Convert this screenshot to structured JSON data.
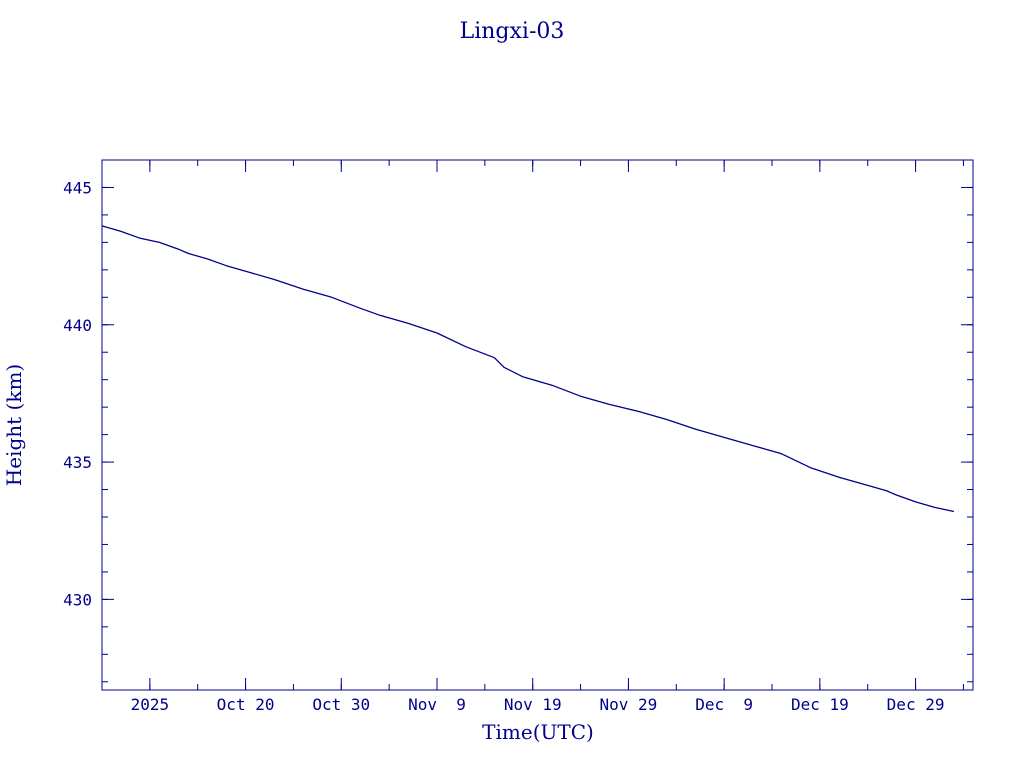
{
  "chart_data": {
    "type": "line",
    "title": "Lingxi-03",
    "xlabel": "Time(UTC)",
    "ylabel": "Height (km)",
    "colors": {
      "line": "#00008b",
      "axes": "#00008b",
      "text": "#00008b",
      "background": "#ffffff"
    },
    "grid": false,
    "legend": "none",
    "xlim": [
      "2025-10-05",
      "2026-01-04"
    ],
    "ylim": [
      426.7,
      446.0
    ],
    "x_ticks": [
      {
        "date": "2025-10-10",
        "label": "2025"
      },
      {
        "date": "2025-10-20",
        "label": "Oct 20"
      },
      {
        "date": "2025-10-30",
        "label": "Oct 30"
      },
      {
        "date": "2025-11-09",
        "label": "Nov  9"
      },
      {
        "date": "2025-11-19",
        "label": "Nov 19"
      },
      {
        "date": "2025-11-29",
        "label": "Nov 29"
      },
      {
        "date": "2025-12-09",
        "label": "Dec  9"
      },
      {
        "date": "2025-12-19",
        "label": "Dec 19"
      },
      {
        "date": "2025-12-29",
        "label": "Dec 29"
      }
    ],
    "x_minor_tick_days": 5,
    "y_ticks": [
      430,
      435,
      440,
      445
    ],
    "y_minor_tick_step": 1,
    "series": [
      {
        "points": [
          {
            "x": "2025-10-05",
            "y": 443.6
          },
          {
            "x": "2025-10-07",
            "y": 443.4
          },
          {
            "x": "2025-10-09",
            "y": 443.15
          },
          {
            "x": "2025-10-11",
            "y": 443.0
          },
          {
            "x": "2025-10-13",
            "y": 442.75
          },
          {
            "x": "2025-10-14",
            "y": 442.6
          },
          {
            "x": "2025-10-16",
            "y": 442.4
          },
          {
            "x": "2025-10-18",
            "y": 442.15
          },
          {
            "x": "2025-10-20",
            "y": 441.95
          },
          {
            "x": "2025-10-23",
            "y": 441.65
          },
          {
            "x": "2025-10-26",
            "y": 441.3
          },
          {
            "x": "2025-10-29",
            "y": 441.0
          },
          {
            "x": "2025-11-01",
            "y": 440.6
          },
          {
            "x": "2025-11-03",
            "y": 440.35
          },
          {
            "x": "2025-11-06",
            "y": 440.05
          },
          {
            "x": "2025-11-09",
            "y": 439.7
          },
          {
            "x": "2025-11-12",
            "y": 439.2
          },
          {
            "x": "2025-11-15",
            "y": 438.8
          },
          {
            "x": "2025-11-16",
            "y": 438.45
          },
          {
            "x": "2025-11-18",
            "y": 438.1
          },
          {
            "x": "2025-11-21",
            "y": 437.8
          },
          {
            "x": "2025-11-24",
            "y": 437.4
          },
          {
            "x": "2025-11-27",
            "y": 437.1
          },
          {
            "x": "2025-11-30",
            "y": 436.85
          },
          {
            "x": "2025-12-03",
            "y": 436.55
          },
          {
            "x": "2025-12-06",
            "y": 436.2
          },
          {
            "x": "2025-12-09",
            "y": 435.9
          },
          {
            "x": "2025-12-12",
            "y": 435.6
          },
          {
            "x": "2025-12-15",
            "y": 435.3
          },
          {
            "x": "2025-12-18",
            "y": 434.8
          },
          {
            "x": "2025-12-21",
            "y": 434.45
          },
          {
            "x": "2025-12-24",
            "y": 434.15
          },
          {
            "x": "2025-12-26",
            "y": 433.95
          },
          {
            "x": "2025-12-27",
            "y": 433.8
          },
          {
            "x": "2025-12-29",
            "y": 433.55
          },
          {
            "x": "2025-12-31",
            "y": 433.35
          },
          {
            "x": "2026-01-02",
            "y": 433.2
          }
        ]
      }
    ]
  }
}
